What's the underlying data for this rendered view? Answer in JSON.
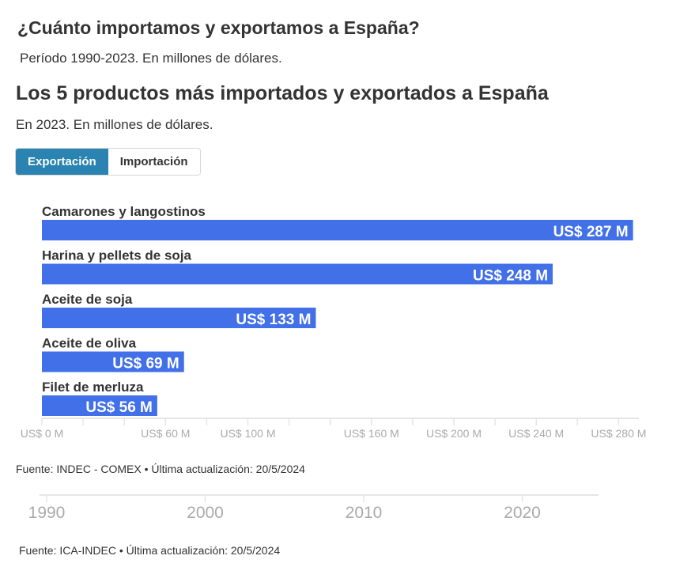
{
  "header": {
    "title": "¿Cuánto importamos y exportamos a España?",
    "subtitle": "Período 1990-2023. En millones de dólares."
  },
  "tabs": [
    {
      "label": "Exportación",
      "active": true
    },
    {
      "label": "Importación",
      "active": false
    }
  ],
  "colors": {
    "bar": "#4270e8",
    "tab_active": "#2a83b1"
  },
  "chart_data": [
    {
      "type": "bar",
      "orientation": "horizontal",
      "title": "Los 5 productos más importados y exportados a España",
      "subtitle": "En 2023. En millones de dólares.",
      "categories": [
        "Camarones y langostinos",
        "Harina y pellets de soja",
        "Aceite de soja",
        "Aceite de oliva",
        "Filet de merluza"
      ],
      "values": [
        287,
        248,
        133,
        69,
        56
      ],
      "data_labels": [
        "US$ 287 M",
        "US$ 248 M",
        "US$ 133 M",
        "US$ 69 M",
        "US$ 56 M"
      ],
      "xlim": [
        0,
        290
      ],
      "tick_values": [
        0,
        20,
        40,
        60,
        80,
        100,
        120,
        140,
        160,
        180,
        200,
        220,
        240,
        260,
        280
      ],
      "tick_labels": [
        {
          "value": 0,
          "label": "US$ 0 M"
        },
        {
          "value": 60,
          "label": "US$ 60 M"
        },
        {
          "value": 100,
          "label": "US$ 100 M"
        },
        {
          "value": 160,
          "label": "US$ 160 M"
        },
        {
          "value": 200,
          "label": "US$ 200 M"
        },
        {
          "value": 240,
          "label": "US$ 240 M"
        },
        {
          "value": 280,
          "label": "US$ 280 M"
        }
      ],
      "source": "Fuente: INDEC - COMEX • Última actualización: 20/5/2024"
    },
    {
      "type": "line",
      "xlim": [
        1989,
        2025
      ],
      "tick_labels": [
        "1990",
        "2000",
        "2010",
        "2020"
      ],
      "tick_values": [
        1990,
        2000,
        2010,
        2020
      ],
      "source": "Fuente: ICA-INDEC • Última actualización: 20/5/2024"
    }
  ]
}
